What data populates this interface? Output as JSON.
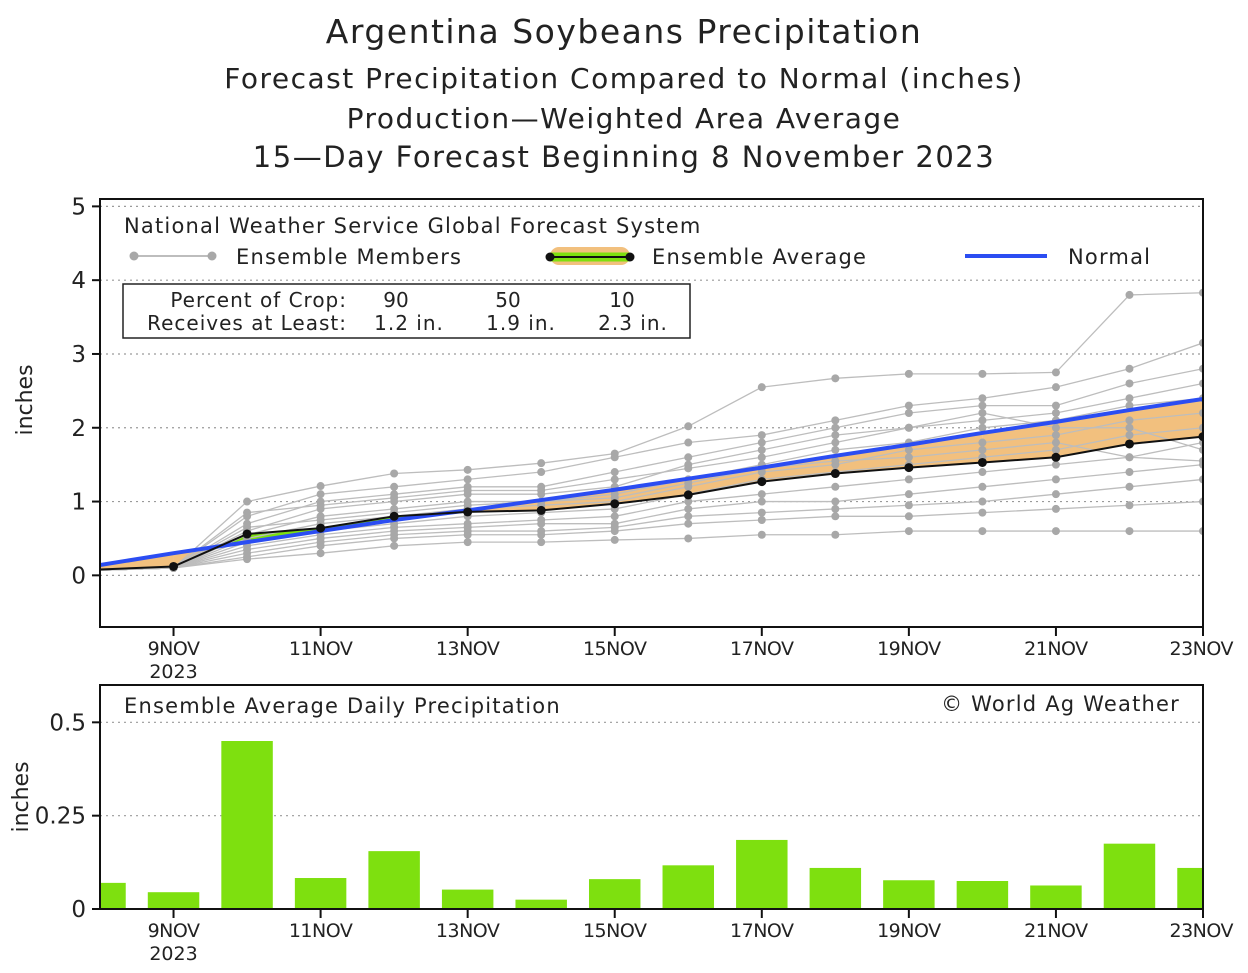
{
  "titles": {
    "line1": "Argentina Soybeans Precipitation",
    "line2": "Forecast Precipitation Compared to Normal (inches)",
    "line3": "Production—Weighted Area Average",
    "line4": "15—Day Forecast Beginning 8 November 2023"
  },
  "legend": {
    "model": "National Weather Service Global Forecast System",
    "members": "Ensemble Members",
    "average": "Ensemble Average",
    "normal": "Normal"
  },
  "crop_box": {
    "row1_label": "Percent of Crop:",
    "row2_label": "Receives at Least:",
    "percents": [
      "90",
      "50",
      "10"
    ],
    "amounts": [
      "1.2 in.",
      "1.9 in.",
      "2.3 in."
    ]
  },
  "bottom": {
    "label": "Ensemble Average Daily Precipitation",
    "credit": "© World Ag Weather"
  },
  "colors": {
    "normal_line": "#2b4df2",
    "member_line": "#bdbdbd",
    "member_dot": "#a8a8a8",
    "average_line": "#111111",
    "fill_deficit": "#f2c07e",
    "fill_surplus": "#7ee00f",
    "daily_bar": "#7ee00f"
  },
  "chart_data": [
    {
      "type": "line",
      "title": "Argentina Soybeans Precipitation",
      "ylabel": "inches",
      "ylim": [
        -0.7,
        5.1
      ],
      "yticks": [
        "0",
        "1",
        "2",
        "3",
        "4",
        "5"
      ],
      "grid": "horizontal dotted",
      "xticks": [
        "9NOV",
        "11NOV",
        "13NOV",
        "15NOV",
        "17NOV",
        "19NOV",
        "21NOV",
        "23NOV"
      ],
      "xtick_year": "2023",
      "x": [
        "8NOV",
        "9NOV",
        "10NOV",
        "11NOV",
        "12NOV",
        "13NOV",
        "14NOV",
        "15NOV",
        "16NOV",
        "17NOV",
        "18NOV",
        "19NOV",
        "20NOV",
        "21NOV",
        "22NOV",
        "23NOV"
      ],
      "series": [
        {
          "name": "Ensemble Average",
          "values": [
            0.08,
            0.12,
            0.56,
            0.64,
            0.8,
            0.86,
            0.88,
            0.97,
            1.09,
            1.27,
            1.38,
            1.46,
            1.53,
            1.6,
            1.78,
            1.88
          ]
        },
        {
          "name": "Normal",
          "values": [
            0.14,
            0.3,
            0.45,
            0.6,
            0.75,
            0.88,
            1.02,
            1.16,
            1.31,
            1.46,
            1.62,
            1.77,
            1.93,
            2.08,
            2.24,
            2.39
          ]
        }
      ],
      "members": [
        [
          0.07,
          0.1,
          1.0,
          1.21,
          1.38,
          1.43,
          1.52,
          1.65,
          2.02,
          2.55,
          2.67,
          2.73,
          2.73,
          2.75,
          3.8,
          3.83
        ],
        [
          0.07,
          0.1,
          0.8,
          1.1,
          1.2,
          1.3,
          1.4,
          1.6,
          1.8,
          1.9,
          2.1,
          2.3,
          2.4,
          2.55,
          2.8,
          3.15
        ],
        [
          0.07,
          0.1,
          0.7,
          1.0,
          1.1,
          1.2,
          1.2,
          1.4,
          1.6,
          1.8,
          2.0,
          2.2,
          2.3,
          2.3,
          2.6,
          2.8
        ],
        [
          0.07,
          0.1,
          0.6,
          0.9,
          1.0,
          1.1,
          1.1,
          1.2,
          1.5,
          1.7,
          1.9,
          2.0,
          2.1,
          2.2,
          2.4,
          2.6
        ],
        [
          0.07,
          0.1,
          0.55,
          0.8,
          0.9,
          1.0,
          1.0,
          1.1,
          1.3,
          1.5,
          1.7,
          1.8,
          2.0,
          2.1,
          2.3,
          2.4
        ],
        [
          0.07,
          0.1,
          0.5,
          0.7,
          0.8,
          0.9,
          0.95,
          1.0,
          1.2,
          1.4,
          1.5,
          1.7,
          1.8,
          1.9,
          2.1,
          2.2
        ],
        [
          0.07,
          0.1,
          0.45,
          0.6,
          0.7,
          0.8,
          0.85,
          0.9,
          1.1,
          1.3,
          1.4,
          1.5,
          1.6,
          1.7,
          1.9,
          2.0
        ],
        [
          0.07,
          0.1,
          0.4,
          0.55,
          0.65,
          0.7,
          0.75,
          0.8,
          1.0,
          1.1,
          1.2,
          1.3,
          1.4,
          1.5,
          1.6,
          1.8
        ],
        [
          0.07,
          0.1,
          0.35,
          0.5,
          0.6,
          0.65,
          0.7,
          0.7,
          0.9,
          1.0,
          1.0,
          1.1,
          1.2,
          1.3,
          1.4,
          1.5
        ],
        [
          0.07,
          0.1,
          0.3,
          0.45,
          0.55,
          0.6,
          0.6,
          0.65,
          0.8,
          0.85,
          0.9,
          0.95,
          1.0,
          1.1,
          1.2,
          1.3
        ],
        [
          0.07,
          0.1,
          0.25,
          0.4,
          0.5,
          0.55,
          0.55,
          0.6,
          0.7,
          0.75,
          0.8,
          0.8,
          0.85,
          0.9,
          0.95,
          1.0
        ],
        [
          0.07,
          0.1,
          0.22,
          0.3,
          0.4,
          0.45,
          0.45,
          0.48,
          0.5,
          0.55,
          0.55,
          0.6,
          0.6,
          0.6,
          0.6,
          0.6
        ],
        [
          0.07,
          0.1,
          0.85,
          0.95,
          1.05,
          1.15,
          1.15,
          1.3,
          1.45,
          1.6,
          1.8,
          2.0,
          2.2,
          2.0,
          2.0,
          1.7
        ],
        [
          0.07,
          0.1,
          0.65,
          0.75,
          0.85,
          0.95,
          1.0,
          1.05,
          1.25,
          1.45,
          1.55,
          1.6,
          1.7,
          1.8,
          1.6,
          1.55
        ]
      ]
    },
    {
      "type": "bar",
      "title": "Ensemble Average Daily Precipitation",
      "ylabel": "inches",
      "ylim": [
        0,
        0.6
      ],
      "yticks": [
        "0",
        "0.25",
        "0.5"
      ],
      "grid": "horizontal dotted",
      "xticks": [
        "9NOV",
        "11NOV",
        "13NOV",
        "15NOV",
        "17NOV",
        "19NOV",
        "21NOV",
        "23NOV"
      ],
      "xtick_year": "2023",
      "categories": [
        "8NOV",
        "9NOV",
        "10NOV",
        "11NOV",
        "12NOV",
        "13NOV",
        "14NOV",
        "15NOV",
        "16NOV",
        "17NOV",
        "18NOV",
        "19NOV",
        "20NOV",
        "21NOV",
        "22NOV",
        "23NOV"
      ],
      "values": [
        0.07,
        0.045,
        0.45,
        0.083,
        0.155,
        0.052,
        0.025,
        0.08,
        0.117,
        0.185,
        0.11,
        0.077,
        0.075,
        0.063,
        0.175,
        0.11
      ]
    }
  ]
}
